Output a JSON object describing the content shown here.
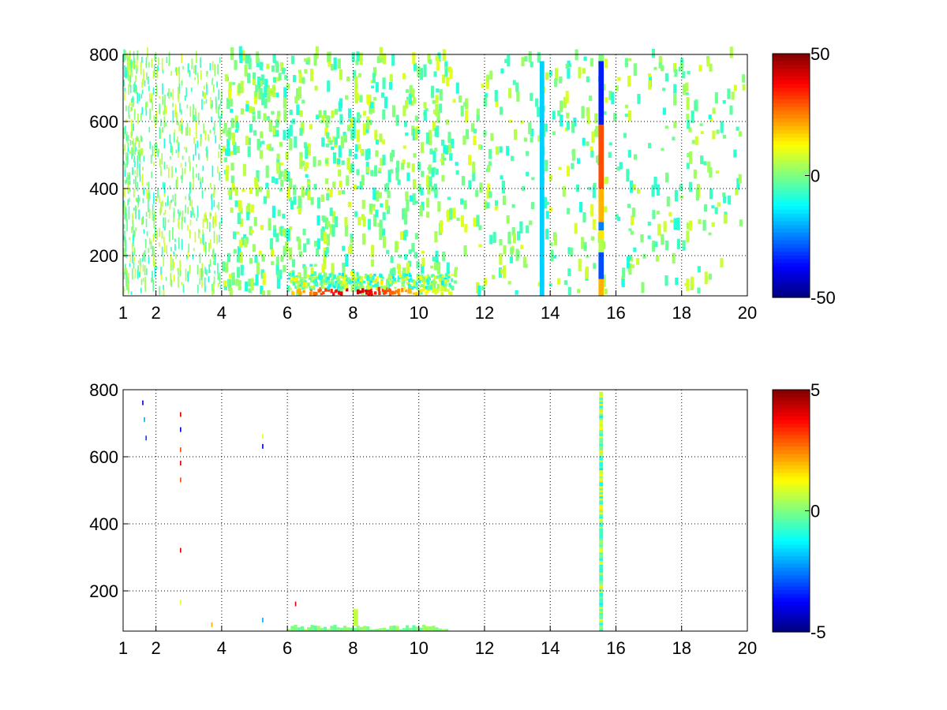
{
  "figure": {
    "background": "#ffffff",
    "colormap": "jet"
  },
  "chart_data": [
    {
      "type": "heatmap",
      "title": "",
      "xlabel": "",
      "ylabel": "",
      "xlim": [
        1,
        20
      ],
      "ylim": [
        80,
        800
      ],
      "xticks": [
        1,
        2,
        4,
        6,
        8,
        10,
        12,
        14,
        16,
        18,
        20
      ],
      "xtick_labels": [
        "1",
        "2",
        "4",
        "6",
        "8",
        "10",
        "12",
        "14",
        "16",
        "18",
        "20"
      ],
      "yticks": [
        200,
        400,
        600,
        800
      ],
      "ytick_labels": [
        "200",
        "400",
        "600",
        "800"
      ],
      "xgrid": [
        2,
        4,
        6,
        8,
        10,
        12,
        14,
        16,
        18,
        20
      ],
      "grid": true,
      "grid_style": "dotted",
      "colorbar": {
        "clim": [
          -50,
          50
        ],
        "ticks": [
          50,
          0,
          -50
        ],
        "tick_labels": [
          "50",
          "0",
          "-50"
        ],
        "position": "right"
      },
      "description_values": {
        "scattered_cells_typical": [
          -10,
          10
        ],
        "bottom_band_x": [
          6,
          11
        ],
        "bottom_band_y": [
          80,
          100
        ],
        "bottom_band_peak": 45
      },
      "columns": [
        {
          "x": 13.75,
          "y": [
            80,
            780
          ],
          "value": -17
        },
        {
          "x": 15.55,
          "y": [
            80,
            800
          ],
          "segments": [
            {
              "y": [
                80,
                130
              ],
              "value": 20
            },
            {
              "y": [
                130,
                210
              ],
              "value": -30
            },
            {
              "y": [
                210,
                250
              ],
              "value": 5
            },
            {
              "y": [
                250,
                275
              ],
              "value": 15
            },
            {
              "y": [
                275,
                300
              ],
              "value": -25
            },
            {
              "y": [
                300,
                400
              ],
              "value": 20
            },
            {
              "y": [
                400,
                590
              ],
              "value": 30
            },
            {
              "y": [
                590,
                780
              ],
              "value": -35
            },
            {
              "y": [
                780,
                800
              ],
              "value": 0
            }
          ]
        }
      ]
    },
    {
      "type": "heatmap",
      "title": "",
      "xlabel": "",
      "ylabel": "",
      "xlim": [
        1,
        20
      ],
      "ylim": [
        80,
        800
      ],
      "xticks": [
        1,
        2,
        4,
        6,
        8,
        10,
        12,
        14,
        16,
        18,
        20
      ],
      "xtick_labels": [
        "1",
        "2",
        "4",
        "6",
        "8",
        "10",
        "12",
        "14",
        "16",
        "18",
        "20"
      ],
      "yticks": [
        200,
        400,
        600,
        800
      ],
      "ytick_labels": [
        "200",
        "400",
        "600",
        "800"
      ],
      "xgrid": [
        2,
        4,
        6,
        8,
        10,
        12,
        14,
        16,
        18,
        20
      ],
      "grid": true,
      "grid_style": "dotted",
      "colorbar": {
        "clim": [
          -5,
          5
        ],
        "ticks": [
          5,
          0,
          -5
        ],
        "tick_labels": [
          "5",
          "0",
          "-5"
        ],
        "position": "right"
      },
      "column": {
        "x": 15.55,
        "y": [
          80,
          790
        ],
        "value_range": [
          -1.5,
          1.5
        ]
      },
      "bottom_band": {
        "x": [
          6,
          10.8
        ],
        "y": [
          80,
          95
        ],
        "value": 0
      },
      "sparse_points": [
        {
          "x": 1.6,
          "y": 760,
          "value": -4
        },
        {
          "x": 1.65,
          "y": 710,
          "value": -2
        },
        {
          "x": 1.7,
          "y": 655,
          "value": -3
        },
        {
          "x": 2.75,
          "y": 725,
          "value": 4
        },
        {
          "x": 2.75,
          "y": 680,
          "value": -4
        },
        {
          "x": 2.75,
          "y": 620,
          "value": 3
        },
        {
          "x": 2.75,
          "y": 580,
          "value": 4
        },
        {
          "x": 2.75,
          "y": 530,
          "value": 3
        },
        {
          "x": 2.75,
          "y": 320,
          "value": 4
        },
        {
          "x": 2.75,
          "y": 165,
          "value": 1
        },
        {
          "x": 3.7,
          "y": 98,
          "value": 2
        },
        {
          "x": 5.25,
          "y": 660,
          "value": 1
        },
        {
          "x": 5.25,
          "y": 630,
          "value": -4
        },
        {
          "x": 5.25,
          "y": 112,
          "value": -2
        },
        {
          "x": 6.25,
          "y": 160,
          "value": 4
        },
        {
          "x": 8.05,
          "y": 140,
          "value": 1
        }
      ]
    }
  ]
}
